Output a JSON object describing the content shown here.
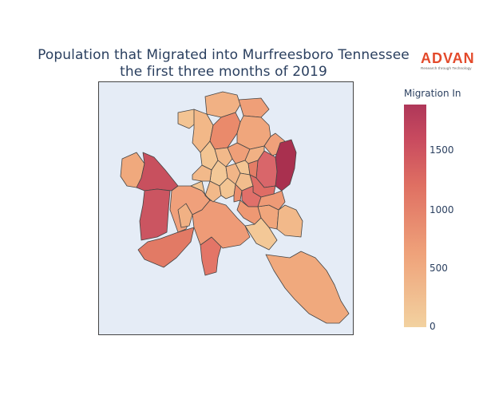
{
  "title": {
    "line1": "Population that Migrated into Murfreesboro Tennessee",
    "line2": "the first three months of 2019"
  },
  "logo": {
    "word": "ADVAN",
    "tagline": "Research through Technology"
  },
  "colorbar": {
    "title": "Migration In",
    "ticks": [
      "1500",
      "1000",
      "500",
      "0"
    ],
    "tick_values": [
      1500,
      1000,
      500,
      0
    ],
    "min": 0,
    "max": 1880,
    "scale": [
      "#f2d2a0",
      "#efa27a",
      "#df6f62",
      "#c94b5f",
      "#af3759"
    ]
  },
  "map": {
    "background": "#e5ecf6",
    "outline_color": "#444444",
    "region_count": 41
  }
}
